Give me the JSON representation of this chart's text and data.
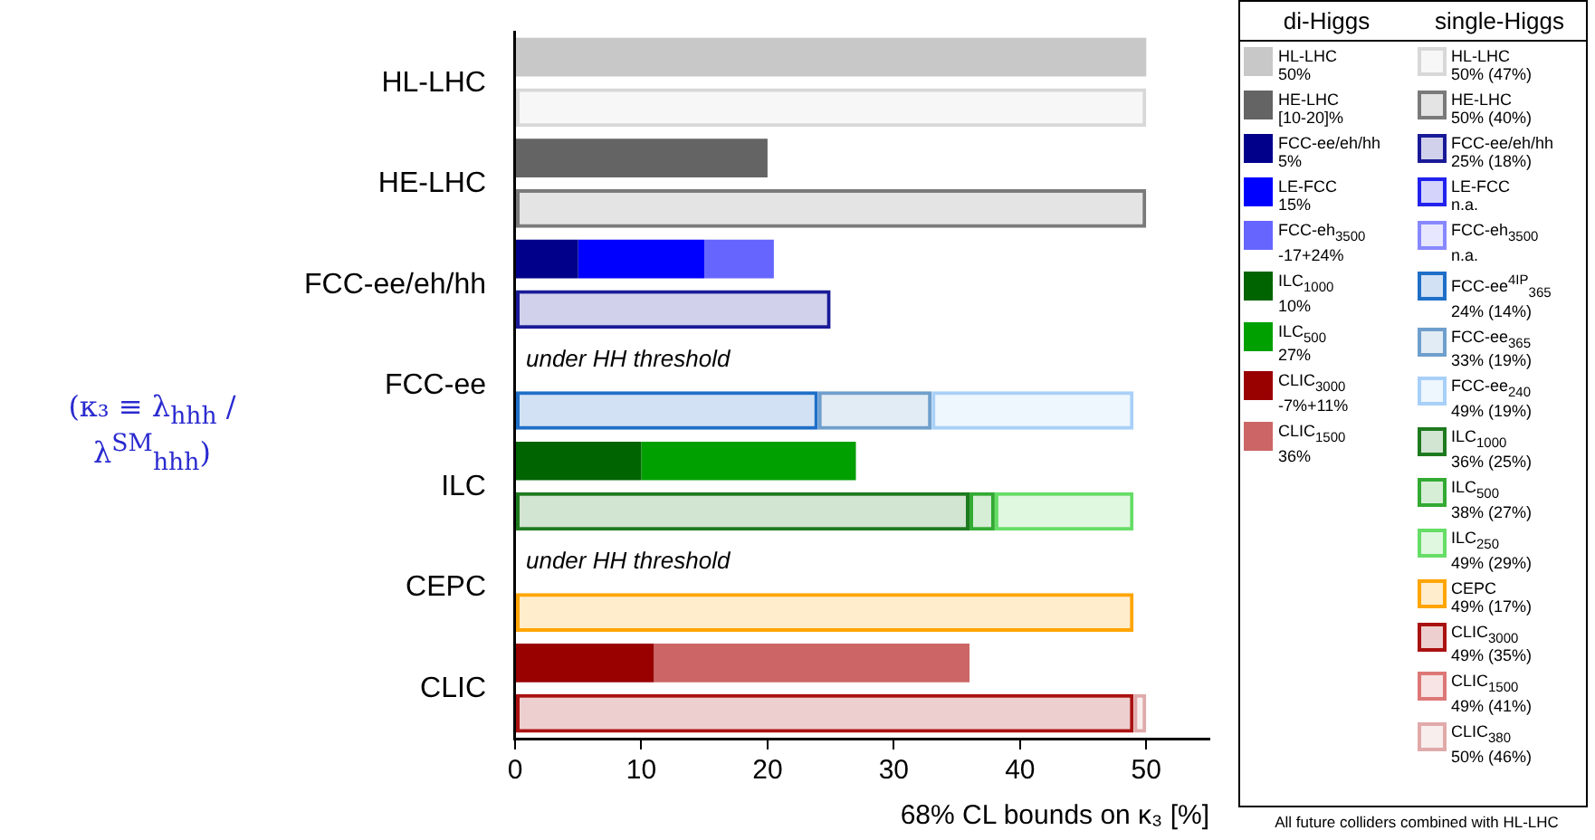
{
  "chart_data": {
    "type": "bar",
    "orientation": "horizontal",
    "stacked": true,
    "xlabel": "68% CL bounds on κ₃ [%]",
    "categories": [
      "HL-LHC",
      null,
      "HE-LHC",
      null,
      "FCC-ee/eh/hh",
      null,
      "FCC-ee",
      null,
      "ILC",
      null,
      "CEPC",
      null,
      "CLIC",
      null
    ],
    "xlim": [
      0,
      55
    ],
    "xticks": [
      0,
      10,
      20,
      30,
      40,
      50
    ],
    "grid": false,
    "legend": "right",
    "annotations": [
      "(κ₃ ≡ λ$_{hhh}$ / λ$^{SM}$$_{hhh}$)",
      "All future colliders combined with HL-LHC",
      "di-Higgs",
      "single-Higgs",
      {
        "text": "under HH threshold",
        "x": 0,
        "y": "FCC-ee"
      },
      {
        "text": "under HH threshold",
        "x": 0,
        "y": "CEPC"
      }
    ],
    "series": [
      {
        "name": "HL-LHC\n50%",
        "color": "#c8c8c8",
        "values": [
          50,
          null,
          null,
          null,
          null,
          null,
          null,
          null,
          null,
          null,
          null,
          null,
          null,
          null
        ]
      },
      {
        "name": "HE-LHC\n[10-20]%",
        "color": "#646464",
        "values": [
          null,
          null,
          20,
          null,
          null,
          null,
          null,
          null,
          null,
          null,
          null,
          null,
          null,
          null
        ]
      },
      {
        "name": "FCC-ee/eh/hh\n5%",
        "color": "#00008b",
        "values": [
          null,
          null,
          null,
          null,
          5,
          null,
          null,
          null,
          null,
          null,
          null,
          null,
          null,
          null
        ]
      },
      {
        "name": "LE-FCC\n15%",
        "color": "#0000ff",
        "values": [
          null,
          null,
          null,
          null,
          10,
          null,
          null,
          null,
          null,
          null,
          null,
          null,
          null,
          null
        ]
      },
      {
        "name": "FCC-eh$_{3500}$\n-17+24%",
        "color": "#6666ff",
        "values": [
          null,
          null,
          null,
          null,
          5.5,
          null,
          null,
          null,
          null,
          null,
          null,
          null,
          null,
          null
        ]
      },
      {
        "name": "ILC$_{1000}$\n10%",
        "color": "#006400",
        "values": [
          null,
          null,
          null,
          null,
          null,
          null,
          null,
          null,
          10,
          null,
          null,
          null,
          null,
          null
        ]
      },
      {
        "name": "ILC$_{500}$\n27%",
        "color": "#00a000",
        "values": [
          null,
          null,
          null,
          null,
          null,
          null,
          null,
          null,
          17,
          null,
          null,
          null,
          null,
          null
        ]
      },
      {
        "name": "CLIC$_{3000}$\n-7%+11%",
        "color": "#990000",
        "values": [
          null,
          null,
          null,
          null,
          null,
          null,
          null,
          null,
          null,
          null,
          null,
          null,
          11,
          null
        ]
      },
      {
        "name": "CLIC$_{1500}$\n36%",
        "color": "#cc6666",
        "values": [
          null,
          null,
          null,
          null,
          null,
          null,
          null,
          null,
          null,
          null,
          null,
          null,
          25,
          null
        ]
      },
      {
        "name": "HL-LHC\n50% (47%)",
        "color": "#d8d8d8",
        "values": [
          null,
          50,
          null,
          null,
          null,
          null,
          null,
          null,
          null,
          null,
          null,
          null,
          null,
          null
        ]
      },
      {
        "name": "HE-LHC\n50% (40%)",
        "color": "#7a7a7a",
        "values": [
          null,
          null,
          null,
          50,
          null,
          null,
          null,
          null,
          null,
          null,
          null,
          null,
          null,
          null
        ]
      },
      {
        "name": "FCC-ee/eh/hh\n25% (18%)",
        "color": "#1a1a99",
        "values": [
          null,
          null,
          null,
          null,
          null,
          25,
          null,
          null,
          null,
          null,
          null,
          null,
          null,
          null
        ]
      },
      {
        "name": "LE-FCC\nn.a.",
        "color": "#2222ee",
        "values": [
          null,
          null,
          null,
          null,
          null,
          null,
          null,
          null,
          null,
          null,
          null,
          null,
          null,
          null
        ]
      },
      {
        "name": "FCC-eh$_{3500}$\nn.a.",
        "color": "#8888ff",
        "values": [
          null,
          null,
          null,
          null,
          null,
          null,
          null,
          null,
          null,
          null,
          null,
          null,
          null,
          null
        ]
      },
      {
        "name": "FCC-ee$^{4IP}$$_{365}$\n24% (14%)",
        "color": "#1f6fc8",
        "values": [
          null,
          null,
          null,
          null,
          null,
          null,
          null,
          24,
          null,
          null,
          null,
          null,
          null,
          null
        ]
      },
      {
        "name": "FCC-ee$_{365}$\n33% (19%)",
        "color": "#6f9fcc",
        "values": [
          null,
          null,
          null,
          null,
          null,
          null,
          null,
          9,
          null,
          null,
          null,
          null,
          null,
          null
        ]
      },
      {
        "name": "FCC-ee$_{240}$\n49% (19%)",
        "color": "#a8d0f8",
        "values": [
          null,
          null,
          null,
          null,
          null,
          null,
          null,
          16,
          null,
          null,
          null,
          null,
          null,
          null
        ]
      },
      {
        "name": "ILC$_{1000}$\n36% (25%)",
        "color": "#1e7a1e",
        "values": [
          null,
          null,
          null,
          null,
          null,
          null,
          null,
          null,
          null,
          36,
          null,
          null,
          null,
          null
        ]
      },
      {
        "name": "ILC$_{500}$\n38% (27%)",
        "color": "#33aa33",
        "values": [
          null,
          null,
          null,
          null,
          null,
          null,
          null,
          null,
          null,
          2,
          null,
          null,
          null,
          null
        ]
      },
      {
        "name": "ILC$_{250}$\n49% (29%)",
        "color": "#66dd66",
        "values": [
          null,
          null,
          null,
          null,
          null,
          null,
          null,
          null,
          null,
          11,
          null,
          null,
          null,
          null
        ]
      },
      {
        "name": "CEPC\n49% (17%)",
        "color": "#ffa500",
        "values": [
          null,
          null,
          null,
          null,
          null,
          null,
          null,
          null,
          null,
          null,
          null,
          49,
          null,
          null
        ]
      },
      {
        "name": "CLIC$_{3000}$\n49% (35%)",
        "color": "#aa1111",
        "values": [
          null,
          null,
          null,
          null,
          null,
          null,
          null,
          null,
          null,
          null,
          null,
          null,
          null,
          49
        ]
      },
      {
        "name": "CLIC$_{1500}$\n49% (41%)",
        "color": "#dd7777",
        "values": [
          null,
          null,
          null,
          null,
          null,
          null,
          null,
          null,
          null,
          null,
          null,
          null,
          null,
          0
        ]
      },
      {
        "name": "CLIC$_{380}$\n50% (46%)",
        "color": "#e0aaaa",
        "values": [
          null,
          null,
          null,
          null,
          null,
          null,
          null,
          null,
          null,
          null,
          null,
          null,
          null,
          1
        ]
      }
    ]
  }
}
